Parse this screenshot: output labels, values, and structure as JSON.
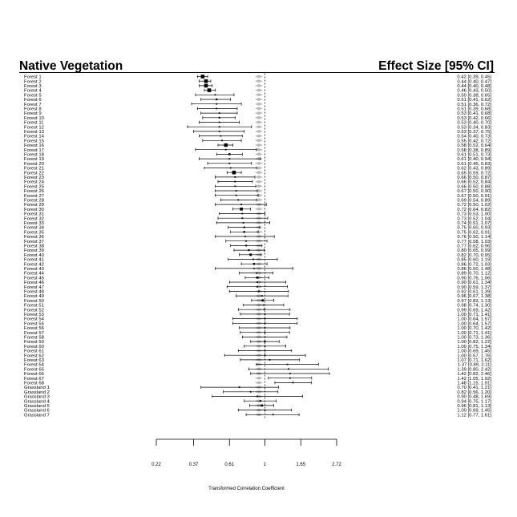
{
  "chart_data": {
    "type": "forest",
    "header_left": "Native Vegetation",
    "header_right": "Effect Size [95% CI]",
    "xlabel": "Transformed Correlation Coefficient",
    "xticks": [
      "0.22",
      "0.37",
      "0.61",
      "1",
      "1.65",
      "2.72"
    ],
    "xlim": [
      0.22,
      2.72
    ],
    "log_scale": true,
    "reference_line": 1,
    "rows": [
      {
        "label": "Forest 1",
        "est": 0.42,
        "lo": 0.39,
        "hi": 0.45,
        "text": "0.42 [0.39, 0.45]"
      },
      {
        "label": "Forest 2",
        "est": 0.44,
        "lo": 0.4,
        "hi": 0.47,
        "text": "0.44 [0.40, 0.47]"
      },
      {
        "label": "Forest 3",
        "est": 0.44,
        "lo": 0.4,
        "hi": 0.48,
        "text": "0.44 [0.40, 0.48]"
      },
      {
        "label": "Forest 4",
        "est": 0.46,
        "lo": 0.43,
        "hi": 0.5,
        "text": "0.46 [0.43, 0.50]"
      },
      {
        "label": "Forest 5",
        "est": 0.5,
        "lo": 0.38,
        "hi": 0.65,
        "text": "0.50 [0.38, 0.65]"
      },
      {
        "label": "Forest 6",
        "est": 0.51,
        "lo": 0.41,
        "hi": 0.62,
        "text": "0.51 [0.41, 0.62]"
      },
      {
        "label": "Forest 7",
        "est": 0.51,
        "lo": 0.36,
        "hi": 0.72,
        "text": "0.51 [0.36, 0.72]"
      },
      {
        "label": "Forest 8",
        "est": 0.51,
        "lo": 0.39,
        "hi": 0.68,
        "text": "0.51 [0.39, 0.68]"
      },
      {
        "label": "Forest 9",
        "est": 0.53,
        "lo": 0.41,
        "hi": 0.68,
        "text": "0.53 [0.41, 0.68]"
      },
      {
        "label": "Forest 10",
        "est": 0.53,
        "lo": 0.42,
        "hi": 0.66,
        "text": "0.53 [0.42, 0.66]"
      },
      {
        "label": "Forest 11",
        "est": 0.53,
        "lo": 0.4,
        "hi": 0.7,
        "text": "0.53 [0.40, 0.70]"
      },
      {
        "label": "Forest 12",
        "est": 0.53,
        "lo": 0.34,
        "hi": 0.83,
        "text": "0.53 [0.34, 0.83]"
      },
      {
        "label": "Forest 13",
        "est": 0.53,
        "lo": 0.37,
        "hi": 0.75,
        "text": "0.53 [0.37, 0.75]"
      },
      {
        "label": "Forest 14",
        "est": 0.54,
        "lo": 0.4,
        "hi": 0.73,
        "text": "0.54 [0.40, 0.73]"
      },
      {
        "label": "Forest 15",
        "est": 0.55,
        "lo": 0.42,
        "hi": 0.72,
        "text": "0.55 [0.42, 0.72]"
      },
      {
        "label": "Forest 16",
        "est": 0.58,
        "lo": 0.52,
        "hi": 0.64,
        "text": "0.58 [0.52, 0.64]"
      },
      {
        "label": "Forest 17",
        "est": 0.58,
        "lo": 0.38,
        "hi": 0.89,
        "text": "0.58 [0.38, 0.89]"
      },
      {
        "label": "Forest 18",
        "est": 0.61,
        "lo": 0.51,
        "hi": 0.73,
        "text": "0.61 [0.51, 0.73]"
      },
      {
        "label": "Forest 19",
        "est": 0.61,
        "lo": 0.4,
        "hi": 0.94,
        "text": "0.61 [0.40, 0.94]"
      },
      {
        "label": "Forest 20",
        "est": 0.61,
        "lo": 0.45,
        "hi": 0.83,
        "text": "0.61 [0.45, 0.83]"
      },
      {
        "label": "Forest 21",
        "est": 0.62,
        "lo": 0.43,
        "hi": 0.89,
        "text": "0.62 [0.43, 0.89]"
      },
      {
        "label": "Forest 22",
        "est": 0.65,
        "lo": 0.59,
        "hi": 0.72,
        "text": "0.65 [0.59, 0.72]"
      },
      {
        "label": "Forest 23",
        "est": 0.66,
        "lo": 0.5,
        "hi": 0.87,
        "text": "0.66 [0.50, 0.87]"
      },
      {
        "label": "Forest 24",
        "est": 0.66,
        "lo": 0.52,
        "hi": 0.84,
        "text": "0.66 [0.52, 0.84]"
      },
      {
        "label": "Forest 25",
        "est": 0.66,
        "lo": 0.5,
        "hi": 0.88,
        "text": "0.66 [0.50, 0.88]"
      },
      {
        "label": "Forest 26",
        "est": 0.67,
        "lo": 0.5,
        "hi": 0.9,
        "text": "0.67 [0.50, 0.90]"
      },
      {
        "label": "Forest 27",
        "est": 0.67,
        "lo": 0.5,
        "hi": 0.91,
        "text": "0.67 [0.50, 0.91]"
      },
      {
        "label": "Forest 28",
        "est": 0.69,
        "lo": 0.54,
        "hi": 0.89,
        "text": "0.69 [0.54, 0.89]"
      },
      {
        "label": "Forest 29",
        "est": 0.72,
        "lo": 0.5,
        "hi": 1.02,
        "text": "0.72 [0.50, 1.02]"
      },
      {
        "label": "Forest 30",
        "est": 0.72,
        "lo": 0.64,
        "hi": 0.82,
        "text": "0.72 [0.64, 0.82]"
      },
      {
        "label": "Forest 31",
        "est": 0.73,
        "lo": 0.53,
        "hi": 1.0,
        "text": "0.73 [0.53, 1.00]"
      },
      {
        "label": "Forest 32",
        "est": 0.73,
        "lo": 0.52,
        "hi": 1.04,
        "text": "0.73 [0.52, 1.04]"
      },
      {
        "label": "Forest 33",
        "est": 0.74,
        "lo": 0.51,
        "hi": 1.07,
        "text": "0.74 [0.51, 1.07]"
      },
      {
        "label": "Forest 34",
        "est": 0.75,
        "lo": 0.6,
        "hi": 0.93,
        "text": "0.75 [0.60, 0.93]"
      },
      {
        "label": "Forest 35",
        "est": 0.75,
        "lo": 0.62,
        "hi": 0.91,
        "text": "0.75 [0.62, 0.91]"
      },
      {
        "label": "Forest 36",
        "est": 0.76,
        "lo": 0.5,
        "hi": 1.14,
        "text": "0.76 [0.50, 1.14]"
      },
      {
        "label": "Forest 37",
        "est": 0.77,
        "lo": 0.58,
        "hi": 1.03,
        "text": "0.77 [0.58, 1.03]"
      },
      {
        "label": "Forest 38",
        "est": 0.77,
        "lo": 0.62,
        "hi": 0.96,
        "text": "0.77 [0.62, 0.96]"
      },
      {
        "label": "Forest 39",
        "est": 0.8,
        "lo": 0.65,
        "hi": 0.99,
        "text": "0.80 [0.65, 0.99]"
      },
      {
        "label": "Forest 40",
        "est": 0.82,
        "lo": 0.7,
        "hi": 0.95,
        "text": "0.82 [0.70, 0.95]"
      },
      {
        "label": "Forest 41",
        "est": 0.85,
        "lo": 0.6,
        "hi": 1.19,
        "text": "0.85 [0.60, 1.19]"
      },
      {
        "label": "Forest 42",
        "est": 0.86,
        "lo": 0.72,
        "hi": 1.03,
        "text": "0.86 [0.72, 1.03]"
      },
      {
        "label": "Forest 43",
        "est": 0.86,
        "lo": 0.5,
        "hi": 1.48,
        "text": "0.86 [0.50, 1.48]"
      },
      {
        "label": "Forest 44",
        "est": 0.89,
        "lo": 0.7,
        "hi": 1.12,
        "text": "0.89 [0.70, 1.12]"
      },
      {
        "label": "Forest 45",
        "est": 0.9,
        "lo": 0.76,
        "hi": 1.06,
        "text": "0.90 [0.76, 1.06]"
      },
      {
        "label": "Forest 46",
        "est": 0.9,
        "lo": 0.61,
        "hi": 1.34,
        "text": "0.90 [0.61, 1.34]"
      },
      {
        "label": "Forest 47",
        "est": 0.9,
        "lo": 0.59,
        "hi": 1.37,
        "text": "0.90 [0.59, 1.37]"
      },
      {
        "label": "Forest 48",
        "est": 0.92,
        "lo": 0.61,
        "hi": 1.39,
        "text": "0.92 [0.61, 1.39]"
      },
      {
        "label": "Forest 49",
        "est": 0.96,
        "lo": 0.67,
        "hi": 1.38,
        "text": "0.96 [0.67, 1.38]"
      },
      {
        "label": "Forest 50",
        "est": 0.97,
        "lo": 0.83,
        "hi": 1.13,
        "text": "0.97 [0.83, 1.13]"
      },
      {
        "label": "Forest 51",
        "est": 0.98,
        "lo": 0.74,
        "hi": 1.3,
        "text": "0.98 [0.74, 1.30]"
      },
      {
        "label": "Forest 52",
        "est": 0.99,
        "lo": 0.69,
        "hi": 1.42,
        "text": "0.99 [0.69, 1.42]"
      },
      {
        "label": "Forest 53",
        "est": 1.0,
        "lo": 0.71,
        "hi": 1.41,
        "text": "1.00 [0.71, 1.41]"
      },
      {
        "label": "Forest 54",
        "est": 1.0,
        "lo": 0.64,
        "hi": 1.57,
        "text": "1.00 [0.64, 1.57]"
      },
      {
        "label": "Forest 55",
        "est": 1.0,
        "lo": 0.64,
        "hi": 1.57,
        "text": "1.00 [0.64, 1.57]"
      },
      {
        "label": "Forest 56",
        "est": 1.0,
        "lo": 0.7,
        "hi": 1.42,
        "text": "1.00 [0.70, 1.42]"
      },
      {
        "label": "Forest 57",
        "est": 1.0,
        "lo": 0.71,
        "hi": 1.41,
        "text": "1.00 [0.71, 1.41]"
      },
      {
        "label": "Forest 58",
        "est": 1.0,
        "lo": 0.73,
        "hi": 1.36,
        "text": "1.00 [0.73, 1.36]"
      },
      {
        "label": "Forest 59",
        "est": 1.0,
        "lo": 0.82,
        "hi": 1.22,
        "text": "1.00 [0.82, 1.22]"
      },
      {
        "label": "Forest 60",
        "est": 1.0,
        "lo": 0.75,
        "hi": 1.34,
        "text": "1.00 [0.75, 1.34]"
      },
      {
        "label": "Forest 61",
        "est": 1.0,
        "lo": 0.69,
        "hi": 1.45,
        "text": "1.00 [0.69, 1.45]"
      },
      {
        "label": "Forest 62",
        "est": 1.0,
        "lo": 0.57,
        "hi": 1.76,
        "text": "1.00 [0.57, 1.76]"
      },
      {
        "label": "Forest 63",
        "est": 1.07,
        "lo": 0.71,
        "hi": 1.62,
        "text": "1.07 [0.71, 1.62]"
      },
      {
        "label": "Forest 64",
        "est": 1.37,
        "lo": 0.89,
        "hi": 2.11,
        "text": "1.37 [0.89, 2.11]"
      },
      {
        "label": "Forest 65",
        "est": 1.39,
        "lo": 0.8,
        "hi": 2.42,
        "text": "1.39 [0.80, 2.42]"
      },
      {
        "label": "Forest 66",
        "est": 1.42,
        "lo": 0.82,
        "hi": 2.46,
        "text": "1.42 [0.82, 2.46]"
      },
      {
        "label": "Forest 67",
        "est": 1.42,
        "lo": 1.05,
        "hi": 1.92,
        "text": "1.42 [1.05, 1.92]"
      },
      {
        "label": "Forest 68",
        "est": 1.48,
        "lo": 1.15,
        "hi": 1.91,
        "text": "1.48 [1.15, 1.91]"
      },
      {
        "label": "Grassland 1",
        "est": 0.7,
        "lo": 0.41,
        "hi": 1.21,
        "text": "0.70 [0.41, 1.21]"
      },
      {
        "label": "Grassland 2",
        "est": 0.82,
        "lo": 0.56,
        "hi": 1.2,
        "text": "0.82 [0.56, 1.20]"
      },
      {
        "label": "Grassland 3",
        "est": 0.9,
        "lo": 0.48,
        "hi": 1.69,
        "text": "0.90 [0.48, 1.69]"
      },
      {
        "label": "Grassland 4",
        "est": 0.94,
        "lo": 0.75,
        "hi": 1.17,
        "text": "0.94 [0.75, 1.17]"
      },
      {
        "label": "Grassland 5",
        "est": 0.96,
        "lo": 0.81,
        "hi": 1.13,
        "text": "0.96 [0.81, 1.13]"
      },
      {
        "label": "Grassland 6",
        "est": 1.0,
        "lo": 0.69,
        "hi": 1.45,
        "text": "1.00 [0.69, 1.45]"
      },
      {
        "label": "Grassland 7",
        "est": 1.12,
        "lo": 0.77,
        "hi": 1.61,
        "text": "1.12 [0.77, 1.61]"
      }
    ],
    "colors": {
      "ink": "#000000",
      "pred_interval": "#bbbbbb"
    }
  }
}
